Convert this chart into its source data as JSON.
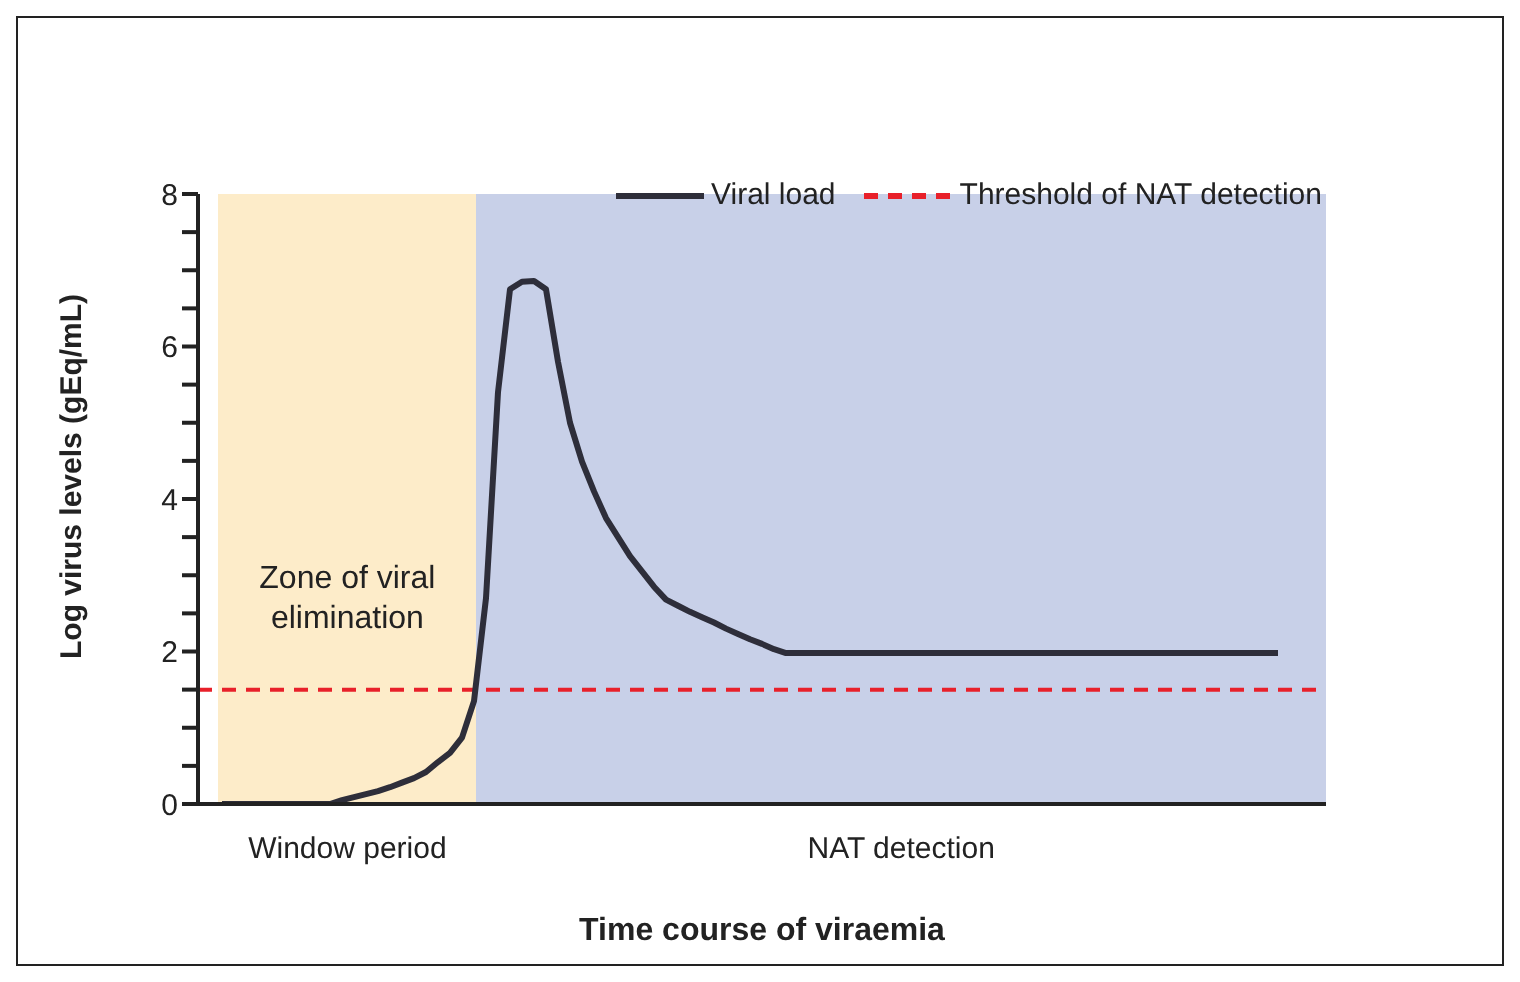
{
  "chart_data": {
    "type": "line",
    "xlabel": "Time course of viraemia",
    "ylabel": "Log virus levels (gEq/mL)",
    "categories": [
      null,
      null,
      null,
      null,
      null,
      null,
      null,
      null,
      null,
      null,
      null,
      null,
      null,
      null,
      null,
      null,
      null,
      null,
      null,
      null,
      null,
      null,
      null,
      null,
      null,
      null,
      null,
      null,
      null,
      null,
      null,
      null,
      null,
      null,
      null,
      null,
      null,
      null,
      null,
      null,
      null,
      null,
      null,
      null,
      null,
      null,
      null,
      null,
      null,
      null,
      null,
      null,
      null,
      null,
      null,
      null,
      null,
      null,
      null,
      null,
      null,
      null,
      null,
      null,
      null,
      null,
      null,
      null,
      null,
      null,
      null,
      null,
      null,
      null,
      null,
      null,
      null,
      null,
      null,
      null,
      null,
      null,
      null,
      null,
      null,
      null,
      null,
      null,
      null,
      null,
      null,
      null,
      null,
      null,
      null
    ],
    "series": [
      {
        "name": "Viral load",
        "color": "#2e2e3a",
        "values": [
          null,
          null,
          0,
          0,
          0,
          0,
          0,
          0,
          0,
          0,
          0,
          0,
          0.05,
          0.09,
          0.13,
          0.17,
          0.22,
          0.28,
          0.34,
          0.42,
          0.55,
          0.67,
          0.87,
          1.35,
          2.7,
          5.4,
          6.75,
          6.85,
          6.86,
          6.75,
          5.8,
          5.0,
          4.49,
          4.1,
          3.75,
          3.5,
          3.25,
          3.05,
          2.85,
          2.68,
          2.6,
          2.52,
          2.45,
          2.38,
          2.3,
          2.23,
          2.16,
          2.1,
          2.03,
          1.98,
          1.98,
          1.98,
          1.98,
          1.98,
          1.98,
          1.98,
          1.98,
          1.98,
          1.98,
          1.98,
          1.98,
          1.98,
          1.98,
          1.98,
          1.98,
          1.98,
          1.98,
          1.98,
          1.98,
          1.98,
          1.98,
          1.98,
          1.98,
          1.98,
          1.98,
          1.98,
          1.98,
          1.98,
          1.98,
          1.98,
          1.98,
          1.98,
          1.98,
          1.98,
          1.98,
          1.98,
          1.98,
          1.98,
          1.98,
          1.98,
          1.98,
          null,
          null,
          null,
          null
        ]
      }
    ],
    "ylim": [
      0,
      8
    ],
    "yticks": [
      0,
      {
        "value": 0.5,
        "label": null
      },
      {
        "value": 1,
        "label": null
      },
      {
        "value": 1.5,
        "label": null
      },
      2,
      {
        "value": 2.5,
        "label": null
      },
      {
        "value": 3,
        "label": null
      },
      {
        "value": 3.5,
        "label": null
      },
      4,
      {
        "value": 4.5,
        "label": null
      },
      {
        "value": 5,
        "label": null
      },
      {
        "value": 5.5,
        "label": null
      },
      6,
      {
        "value": 6.5,
        "label": null
      },
      {
        "value": 7,
        "label": null
      },
      {
        "value": 7.5,
        "label": null
      },
      8
    ],
    "tick_labels": "y",
    "ref_lines": [
      {
        "axis": "y",
        "value": 1.5,
        "label": "Threshold of NAT detection",
        "color": "#e8202a",
        "line_style": "dashed"
      }
    ],
    "annotations": [
      "Zone of viral elimination",
      "Window period",
      "NAT detection"
    ],
    "legend": "top right",
    "grid": false,
    "marker": "none",
    "line_style": "solid"
  }
}
